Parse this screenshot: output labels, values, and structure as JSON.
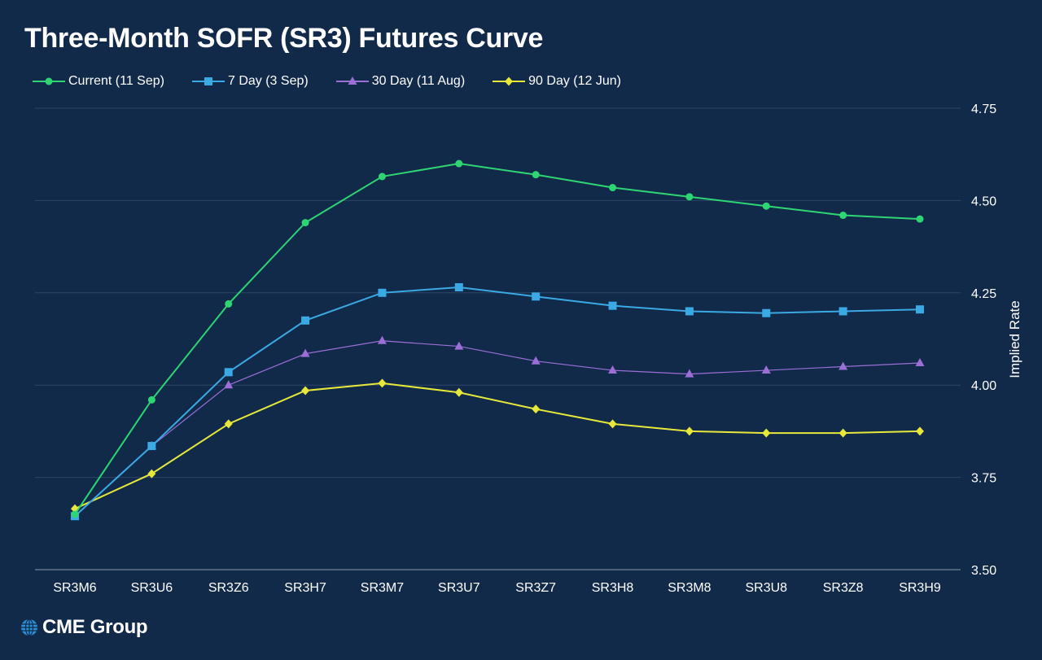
{
  "chart_data": {
    "type": "line",
    "title": "Three-Month SOFR (SR3) Futures Curve",
    "xlabel": "",
    "ylabel": "Implied Rate",
    "categories": [
      "SR3M6",
      "SR3U6",
      "SR3Z6",
      "SR3H7",
      "SR3M7",
      "SR3U7",
      "SR3Z7",
      "SR3H8",
      "SR3M8",
      "SR3U8",
      "SR3Z8",
      "SR3H9"
    ],
    "ylim": [
      3.5,
      4.75
    ],
    "yticks": [
      "3.50",
      "3.75",
      "4.00",
      "4.25",
      "4.50",
      "4.75"
    ],
    "grid": true,
    "legend_position": "top-left",
    "y_axis_side": "right",
    "series": [
      {
        "name": "Current (11 Sep)",
        "color": "#2ed573",
        "marker": "circle",
        "values": [
          3.65,
          3.96,
          4.22,
          4.44,
          4.565,
          4.6,
          4.57,
          4.535,
          4.51,
          4.485,
          4.46,
          4.45
        ]
      },
      {
        "name": "7 Day (3 Sep)",
        "color": "#3aa9e4",
        "marker": "square",
        "values": [
          3.645,
          3.835,
          4.035,
          4.175,
          4.25,
          4.265,
          4.24,
          4.215,
          4.2,
          4.195,
          4.2,
          4.205
        ]
      },
      {
        "name": "30 Day (11 Aug)",
        "color": "#9b6fd6",
        "marker": "triangle",
        "values": [
          3.645,
          3.835,
          4.0,
          4.085,
          4.12,
          4.105,
          4.065,
          4.04,
          4.03,
          4.04,
          4.05,
          4.06
        ]
      },
      {
        "name": "90 Day (12 Jun)",
        "color": "#e8e83a",
        "marker": "diamond",
        "values": [
          3.665,
          3.76,
          3.895,
          3.985,
          4.005,
          3.98,
          3.935,
          3.895,
          3.875,
          3.87,
          3.87,
          3.875
        ]
      }
    ]
  },
  "logo": {
    "text": "CME Group",
    "icon": "globe-icon"
  }
}
